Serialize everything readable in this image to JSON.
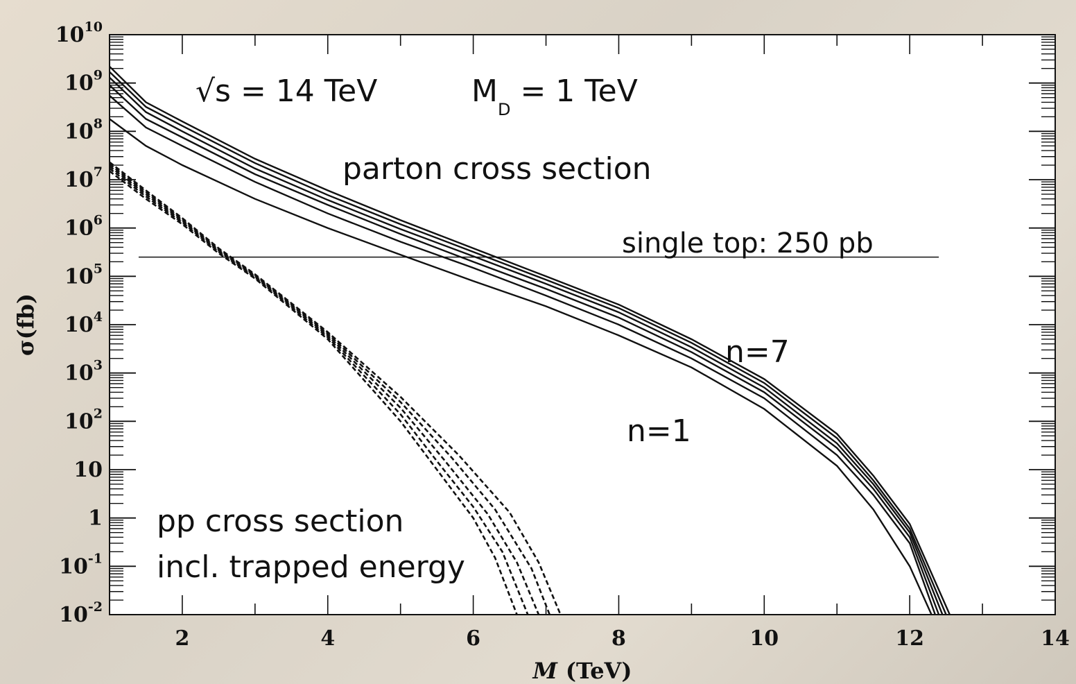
{
  "chart_data": {
    "type": "line",
    "title": "",
    "xlabel": "M (TeV)",
    "xlabel_var": "M",
    "xlabel_unit": "(TeV)",
    "ylabel": "σ(fb)",
    "xlim": [
      1,
      14
    ],
    "ylim": [
      0.01,
      10000000000
    ],
    "yscale": "log",
    "grid": false,
    "x_ticks": [
      "2",
      "4",
      "6",
      "8",
      "10",
      "12",
      "14"
    ],
    "y_ticks": [
      {
        "base": "10",
        "exp": "-2"
      },
      {
        "base": "10",
        "exp": "-1"
      },
      {
        "base": "1",
        "exp": ""
      },
      {
        "base": "10",
        "exp": ""
      },
      {
        "base": "10",
        "exp": "2"
      },
      {
        "base": "10",
        "exp": "3"
      },
      {
        "base": "10",
        "exp": "4"
      },
      {
        "base": "10",
        "exp": "5"
      },
      {
        "base": "10",
        "exp": "6"
      },
      {
        "base": "10",
        "exp": "7"
      },
      {
        "base": "10",
        "exp": "8"
      },
      {
        "base": "10",
        "exp": "9"
      },
      {
        "base": "10",
        "exp": "10"
      }
    ],
    "annotations": {
      "energy_sqrt": "√s = 14 TeV",
      "md_main": "M",
      "md_sub": "D",
      "md_rest": " = 1 TeV",
      "parton": "parton cross section",
      "single_top": "single top: 250 pb",
      "n7": "n=7",
      "n1": "n=1",
      "pp_line1": "pp cross section",
      "pp_line2": "incl. trapped energy"
    },
    "reference_line": {
      "y": 250000,
      "x_range": [
        1.4,
        12.4
      ]
    },
    "parton_series": [
      {
        "x": [
          1,
          1.5,
          2,
          3,
          4,
          5,
          6,
          7,
          8,
          9,
          10,
          11,
          11.5,
          12,
          12.3
        ],
        "y": [
          180000000,
          50000000,
          20000000,
          4000000,
          1000000,
          280000,
          80000,
          24000,
          6000,
          1300,
          180,
          12,
          1.5,
          0.1,
          0.01
        ]
      },
      {
        "x": [
          1,
          1.5,
          2,
          3,
          4,
          5,
          6,
          7,
          8,
          9,
          10,
          11,
          11.5,
          12,
          12.35
        ],
        "y": [
          550000000,
          120000000,
          50000000,
          9000000,
          2000000,
          520000,
          150000,
          40000,
          10000,
          2000,
          300,
          20,
          3,
          0.3,
          0.01
        ]
      },
      {
        "x": [
          1,
          1.5,
          2,
          3,
          4,
          5,
          6,
          7,
          8,
          9,
          10,
          11,
          11.5,
          12,
          12.4
        ],
        "y": [
          900000000,
          180000000,
          75000000,
          13000000,
          3000000,
          750000,
          200000,
          55000,
          14000,
          2700,
          400,
          28,
          4,
          0.4,
          0.01
        ]
      },
      {
        "x": [
          1,
          1.5,
          2,
          3,
          4,
          5,
          6,
          7,
          8,
          9,
          10,
          11,
          11.5,
          12,
          12.45
        ],
        "y": [
          1300000000,
          250000000,
          100000000,
          17000000,
          3800000,
          950000,
          260000,
          70000,
          18000,
          3400,
          500,
          35,
          5,
          0.5,
          0.01
        ]
      },
      {
        "x": [
          1,
          1.5,
          2,
          3,
          4,
          5,
          6,
          7,
          8,
          9,
          10,
          11,
          11.5,
          12,
          12.5
        ],
        "y": [
          1700000000,
          320000000,
          130000000,
          22000000,
          4800000,
          1200000,
          320000,
          85000,
          22000,
          4200,
          620,
          45,
          6,
          0.6,
          0.01
        ]
      },
      {
        "x": [
          1,
          1.5,
          2,
          3,
          4,
          5,
          6,
          7,
          8,
          9,
          10,
          11,
          11.5,
          12,
          12.55
        ],
        "y": [
          2200000000,
          400000000,
          160000000,
          27000000,
          6000000,
          1450000,
          380000,
          100000,
          26000,
          5000,
          750,
          55,
          7.5,
          0.75,
          0.01
        ]
      }
    ],
    "pp_series": [
      {
        "x": [
          1,
          1.5,
          2,
          2.5,
          3,
          4,
          5,
          5.5,
          6,
          6.3,
          6.6
        ],
        "y": [
          15000000,
          4000000,
          1200000,
          300000,
          90000,
          5000,
          100,
          10,
          1,
          0.15,
          0.01
        ]
      },
      {
        "x": [
          1,
          1.5,
          2,
          2.5,
          3,
          4,
          5,
          5.5,
          6,
          6.4,
          6.75
        ],
        "y": [
          17000000,
          4500000,
          1300000,
          320000,
          95000,
          5500,
          140,
          15,
          1.7,
          0.2,
          0.01
        ]
      },
      {
        "x": [
          1,
          1.5,
          2,
          2.5,
          3,
          4,
          5,
          5.6,
          6.2,
          6.6,
          6.9
        ],
        "y": [
          19000000,
          5000000,
          1400000,
          340000,
          100000,
          6000,
          190,
          16,
          1.2,
          0.12,
          0.01
        ]
      },
      {
        "x": [
          1,
          1.5,
          2,
          2.5,
          3,
          4,
          5,
          5.7,
          6.3,
          6.8,
          7.05
        ],
        "y": [
          21000000,
          5500000,
          1500000,
          360000,
          105000,
          6500,
          250,
          18,
          1.5,
          0.09,
          0.01
        ]
      },
      {
        "x": [
          1,
          1.5,
          2,
          2.5,
          3,
          4,
          5,
          5.8,
          6.5,
          6.9,
          7.2
        ],
        "y": [
          23000000,
          6000000,
          1600000,
          380000,
          110000,
          7000,
          320,
          20,
          1.3,
          0.12,
          0.01
        ]
      }
    ]
  }
}
